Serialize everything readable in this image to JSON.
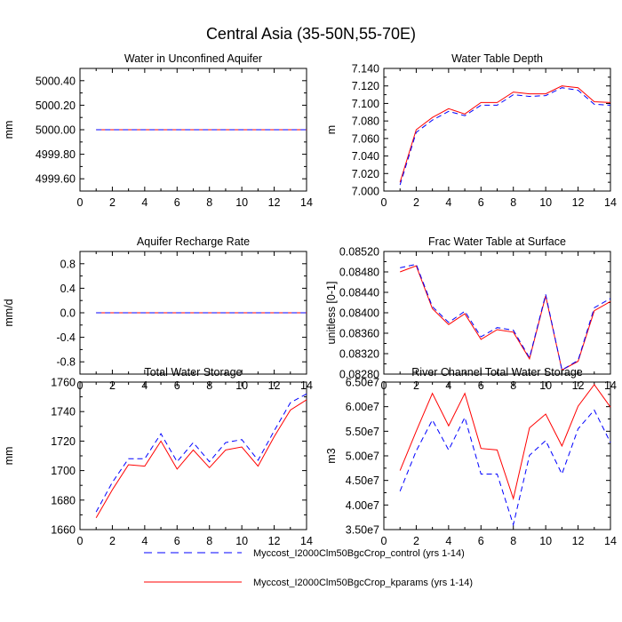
{
  "figure_title": "Central Asia (35-50N,55-70E)",
  "colors": {
    "control": "#0000ff",
    "kparams": "#ff0000",
    "axis": "#000000"
  },
  "legend": {
    "entries": [
      {
        "label": "Myccost_I2000Clm50BgcCrop_control (yrs 1-14)",
        "style": "dashed",
        "color": "#0000ff"
      },
      {
        "label": "Myccost_I2000Clm50BgcCrop_kparams (yrs 1-14)",
        "style": "solid",
        "color": "#ff0000"
      }
    ]
  },
  "chart_data": [
    {
      "type": "line",
      "title": "Water in Unconfined Aquifer",
      "ylabel": "mm",
      "xlim": [
        0,
        14
      ],
      "xticks": [
        "0",
        "2",
        "4",
        "6",
        "8",
        "10",
        "12",
        "14"
      ],
      "ylim": [
        4999.5,
        5000.5
      ],
      "yticks": [
        4999.6,
        4999.8,
        5000.0,
        5000.2,
        5000.4
      ],
      "yticklabels": [
        "4999.60",
        "4999.80",
        "5000.00",
        "5000.20",
        "5000.40"
      ],
      "x": [
        1,
        2,
        3,
        4,
        5,
        6,
        7,
        8,
        9,
        10,
        11,
        12,
        13,
        14
      ],
      "series": [
        {
          "name": "control",
          "values": [
            5000,
            5000,
            5000,
            5000,
            5000,
            5000,
            5000,
            5000,
            5000,
            5000,
            5000,
            5000,
            5000,
            5000
          ]
        },
        {
          "name": "kparams",
          "values": [
            5000,
            5000,
            5000,
            5000,
            5000,
            5000,
            5000,
            5000,
            5000,
            5000,
            5000,
            5000,
            5000,
            5000
          ]
        }
      ]
    },
    {
      "type": "line",
      "title": "Water Table Depth",
      "ylabel": "m",
      "xlim": [
        0,
        14
      ],
      "xticks": [
        "0",
        "2",
        "4",
        "6",
        "8",
        "10",
        "12",
        "14"
      ],
      "ylim": [
        7.0,
        7.14
      ],
      "yticks": [
        7.0,
        7.02,
        7.04,
        7.06,
        7.08,
        7.1,
        7.12,
        7.14
      ],
      "yticklabels": [
        "7.000",
        "7.020",
        "7.040",
        "7.060",
        "7.080",
        "7.100",
        "7.120",
        "7.140"
      ],
      "x": [
        1,
        2,
        3,
        4,
        5,
        6,
        7,
        8,
        9,
        10,
        11,
        12,
        13,
        14
      ],
      "series": [
        {
          "name": "control",
          "values": [
            7.007,
            7.067,
            7.081,
            7.091,
            7.086,
            7.098,
            7.098,
            7.11,
            7.108,
            7.109,
            7.118,
            7.115,
            7.099,
            7.098
          ]
        },
        {
          "name": "kparams",
          "values": [
            7.01,
            7.07,
            7.084,
            7.094,
            7.088,
            7.101,
            7.101,
            7.113,
            7.111,
            7.111,
            7.12,
            7.118,
            7.102,
            7.101
          ]
        }
      ]
    },
    {
      "type": "line",
      "title": "Aquifer Recharge Rate",
      "ylabel": "mm/d",
      "xlim": [
        0,
        14
      ],
      "xticks": [
        "0",
        "2",
        "4",
        "6",
        "8",
        "10",
        "12",
        "14"
      ],
      "ylim": [
        -1.0,
        1.0
      ],
      "yticks": [
        -0.8,
        -0.4,
        0.0,
        0.4,
        0.8
      ],
      "yticklabels": [
        "-0.8",
        "-0.4",
        "0.0",
        "0.4",
        "0.8"
      ],
      "x": [
        1,
        2,
        3,
        4,
        5,
        6,
        7,
        8,
        9,
        10,
        11,
        12,
        13,
        14
      ],
      "series": [
        {
          "name": "control",
          "values": [
            0,
            0,
            0,
            0,
            0,
            0,
            0,
            0,
            0,
            0,
            0,
            0,
            0,
            0
          ]
        },
        {
          "name": "kparams",
          "values": [
            0,
            0,
            0,
            0,
            0,
            0,
            0,
            0,
            0,
            0,
            0,
            0,
            0,
            0
          ]
        }
      ]
    },
    {
      "type": "line",
      "title": "Frac Water Table at Surface",
      "ylabel": "unitless [0-1]",
      "xlim": [
        0,
        14
      ],
      "xticks": [
        "0",
        "2",
        "4",
        "6",
        "8",
        "10",
        "12",
        "14"
      ],
      "ylim": [
        0.0828,
        0.0852
      ],
      "yticks": [
        0.0828,
        0.0832,
        0.0836,
        0.084,
        0.0844,
        0.0848,
        0.0852
      ],
      "yticklabels": [
        "0.08280",
        "0.08320",
        "0.08360",
        "0.08400",
        "0.08440",
        "0.08480",
        "0.08520"
      ],
      "x": [
        1,
        2,
        3,
        4,
        5,
        6,
        7,
        8,
        9,
        10,
        11,
        12,
        13,
        14
      ],
      "series": [
        {
          "name": "control",
          "values": [
            0.08488,
            0.08495,
            0.08412,
            0.08381,
            0.08403,
            0.08353,
            0.08371,
            0.08366,
            0.08312,
            0.08436,
            0.08288,
            0.08307,
            0.0841,
            0.08428
          ]
        },
        {
          "name": "kparams",
          "values": [
            0.0848,
            0.08492,
            0.08408,
            0.08377,
            0.08398,
            0.08348,
            0.08367,
            0.08362,
            0.0831,
            0.08433,
            0.08288,
            0.08305,
            0.08404,
            0.08422
          ]
        }
      ]
    },
    {
      "type": "line",
      "title": "Total Water Storage",
      "ylabel": "mm",
      "xlim": [
        0,
        14
      ],
      "xticks": [
        "0",
        "2",
        "4",
        "6",
        "8",
        "10",
        "12",
        "14"
      ],
      "ylim": [
        1660,
        1760
      ],
      "yticks": [
        1660,
        1680,
        1700,
        1720,
        1740,
        1760
      ],
      "yticklabels": [
        "1660",
        "1680",
        "1700",
        "1720",
        "1740",
        "1760"
      ],
      "x": [
        1,
        2,
        3,
        4,
        5,
        6,
        7,
        8,
        9,
        10,
        11,
        12,
        13,
        14
      ],
      "series": [
        {
          "name": "control",
          "values": [
            1672,
            1692,
            1708,
            1708,
            1725,
            1706,
            1719,
            1706,
            1719,
            1721,
            1707,
            1727,
            1746,
            1752
          ]
        },
        {
          "name": "kparams",
          "values": [
            1668,
            1687,
            1704,
            1703,
            1720,
            1701,
            1714,
            1702,
            1714,
            1716,
            1703,
            1723,
            1741,
            1748
          ]
        }
      ]
    },
    {
      "type": "line",
      "title": "River Channel Total Water Storage",
      "ylabel": "m3",
      "xlim": [
        0,
        14
      ],
      "xticks": [
        "0",
        "2",
        "4",
        "6",
        "8",
        "10",
        "12",
        "14"
      ],
      "ylim": [
        35000000,
        65000000
      ],
      "yticks": [
        35000000,
        40000000,
        45000000,
        50000000,
        55000000,
        60000000,
        65000000
      ],
      "yticklabels": [
        "3.50e7",
        "4.00e7",
        "4.50e7",
        "5.00e7",
        "5.50e7",
        "6.00e7",
        "6.50e7"
      ],
      "x": [
        1,
        2,
        3,
        4,
        5,
        6,
        7,
        8,
        9,
        10,
        11,
        12,
        13,
        14
      ],
      "series": [
        {
          "name": "control",
          "values": [
            42800000,
            51000000,
            57300000,
            51200000,
            57800000,
            46300000,
            46300000,
            36000000,
            50100000,
            53100000,
            46300000,
            55500000,
            59300000,
            52700000
          ]
        },
        {
          "name": "kparams",
          "values": [
            47000000,
            55000000,
            62700000,
            56100000,
            62700000,
            51500000,
            51200000,
            41300000,
            55700000,
            58500000,
            52000000,
            60100000,
            64500000,
            59900000
          ]
        }
      ]
    }
  ]
}
